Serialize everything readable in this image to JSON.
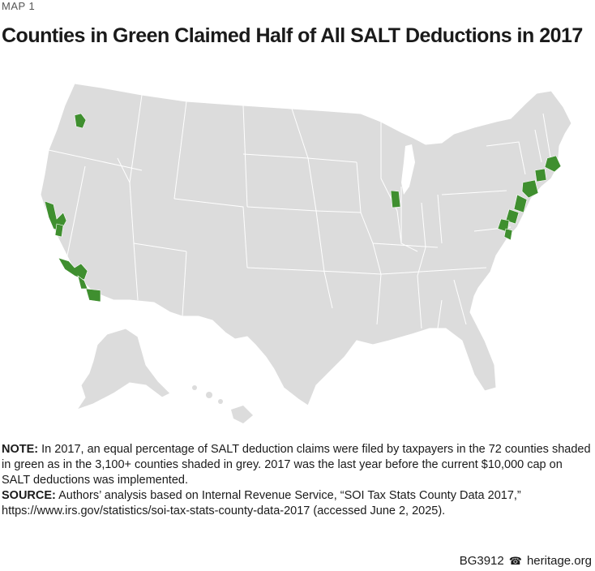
{
  "header": {
    "map_label": "MAP 1",
    "title": "Counties in Green Claimed Half of All SALT Deductions in 2017"
  },
  "map": {
    "land_color": "#dcdcdc",
    "border_color": "#ffffff",
    "highlight_color": "#3f8f2f"
  },
  "notes": {
    "note_label": "NOTE:",
    "note_text": " In 2017, an equal percentage of SALT deduction claims were filed by taxpayers in the 72 counties shaded in green as in the 3,100+ counties shaded in grey. 2017 was the last year before the current $10,000 cap on SALT deductions was implemented.",
    "source_label": "SOURCE:",
    "source_text": " Authors’ analysis based on Internal Revenue Service, “SOI Tax Stats County Data 2017,” https://www.irs.gov/statistics/soi-tax-stats-county-data-2017 (accessed June 2, 2025)."
  },
  "footer": {
    "report_id": "BG3912",
    "site": "heritage.org",
    "icon": "bell-icon"
  }
}
